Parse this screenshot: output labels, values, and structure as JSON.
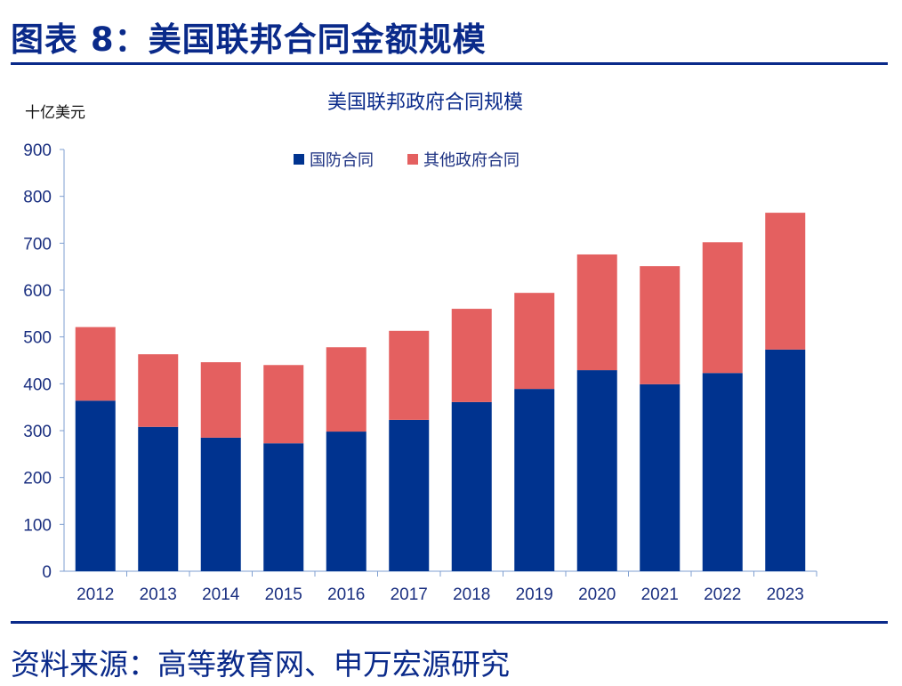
{
  "header": {
    "title": "图表 8：美国联邦合同金额规模"
  },
  "footer": {
    "source": "资料来源：高等教育网、申万宏源研究"
  },
  "chart_data": {
    "type": "bar",
    "stacked": true,
    "title": "美国联邦政府合同规模",
    "ylabel": "十亿美元",
    "xlabel": "",
    "ylim": [
      0,
      900
    ],
    "yticks": [
      0,
      100,
      200,
      300,
      400,
      500,
      600,
      700,
      800,
      900
    ],
    "grid": false,
    "legend_position": "top",
    "categories": [
      "2012",
      "2013",
      "2014",
      "2015",
      "2016",
      "2017",
      "2018",
      "2019",
      "2020",
      "2021",
      "2022",
      "2023"
    ],
    "series": [
      {
        "name": "国防合同",
        "color": "#00338f",
        "values": [
          364,
          308,
          285,
          273,
          298,
          323,
          361,
          389,
          429,
          399,
          423,
          473
        ]
      },
      {
        "name": "其他政府合同",
        "color": "#e46060",
        "values": [
          157,
          155,
          161,
          167,
          180,
          190,
          199,
          205,
          247,
          252,
          279,
          292
        ]
      }
    ]
  }
}
